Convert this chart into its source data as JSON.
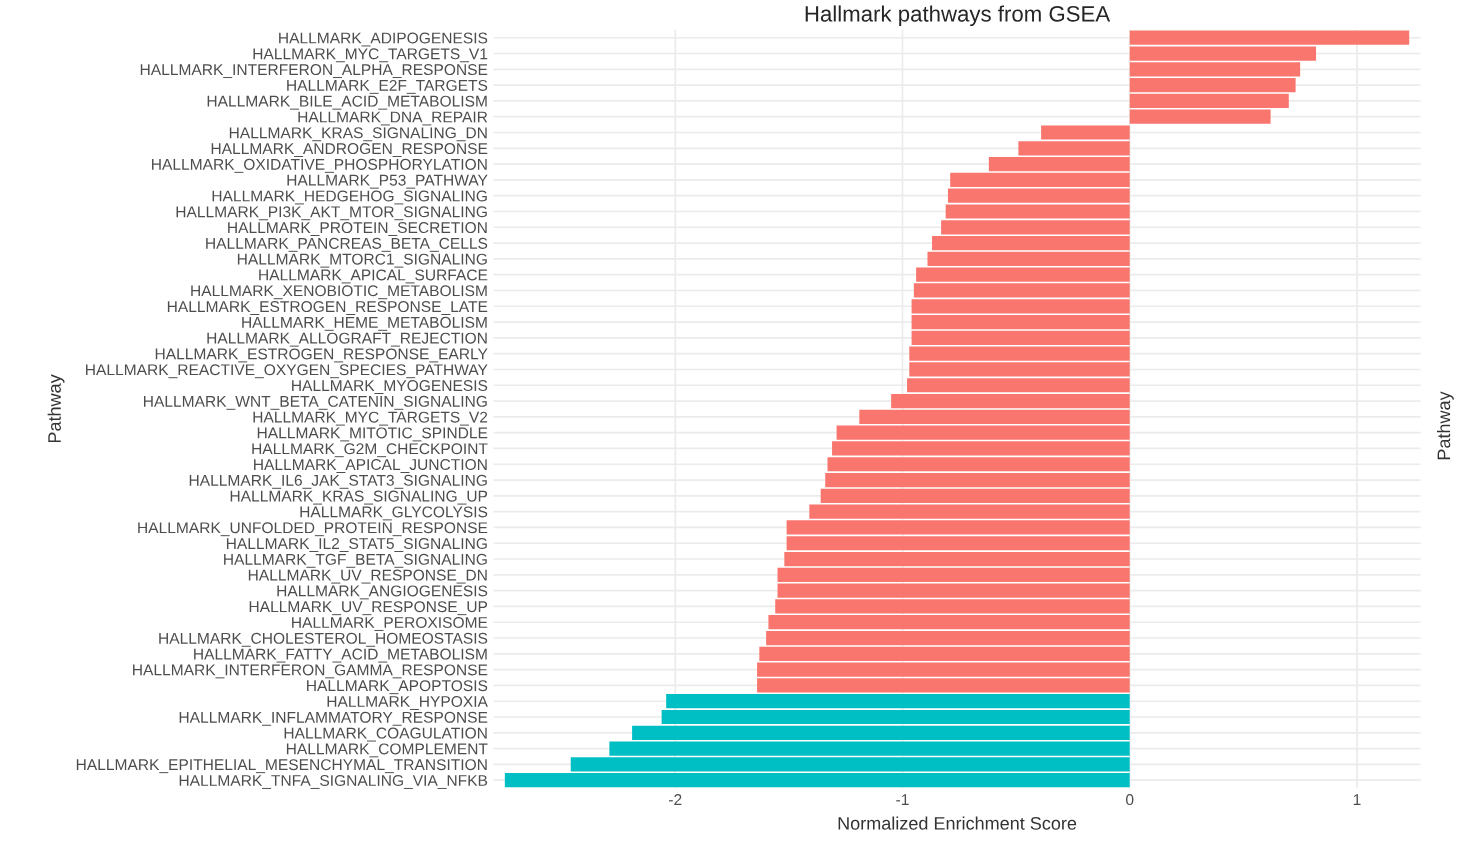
{
  "chart_data": {
    "type": "bar",
    "orientation": "horizontal",
    "title": "Hallmark pathways from GSEA",
    "xlabel": "Normalized Enrichment Score",
    "ylabel": "Pathway",
    "y2label": "Pathway",
    "categories": [
      "HALLMARK_ADIPOGENESIS",
      "HALLMARK_MYC_TARGETS_V1",
      "HALLMARK_INTERFERON_ALPHA_RESPONSE",
      "HALLMARK_E2F_TARGETS",
      "HALLMARK_BILE_ACID_METABOLISM",
      "HALLMARK_DNA_REPAIR",
      "HALLMARK_KRAS_SIGNALING_DN",
      "HALLMARK_ANDROGEN_RESPONSE",
      "HALLMARK_OXIDATIVE_PHOSPHORYLATION",
      "HALLMARK_P53_PATHWAY",
      "HALLMARK_HEDGEHOG_SIGNALING",
      "HALLMARK_PI3K_AKT_MTOR_SIGNALING",
      "HALLMARK_PROTEIN_SECRETION",
      "HALLMARK_PANCREAS_BETA_CELLS",
      "HALLMARK_MTORC1_SIGNALING",
      "HALLMARK_APICAL_SURFACE",
      "HALLMARK_XENOBIOTIC_METABOLISM",
      "HALLMARK_ESTROGEN_RESPONSE_LATE",
      "HALLMARK_HEME_METABOLISM",
      "HALLMARK_ALLOGRAFT_REJECTION",
      "HALLMARK_ESTROGEN_RESPONSE_EARLY",
      "HALLMARK_REACTIVE_OXYGEN_SPECIES_PATHWAY",
      "HALLMARK_MYOGENESIS",
      "HALLMARK_WNT_BETA_CATENIN_SIGNALING",
      "HALLMARK_MYC_TARGETS_V2",
      "HALLMARK_MITOTIC_SPINDLE",
      "HALLMARK_G2M_CHECKPOINT",
      "HALLMARK_APICAL_JUNCTION",
      "HALLMARK_IL6_JAK_STAT3_SIGNALING",
      "HALLMARK_KRAS_SIGNALING_UP",
      "HALLMARK_GLYCOLYSIS",
      "HALLMARK_UNFOLDED_PROTEIN_RESPONSE",
      "HALLMARK_IL2_STAT5_SIGNALING",
      "HALLMARK_TGF_BETA_SIGNALING",
      "HALLMARK_UV_RESPONSE_DN",
      "HALLMARK_ANGIOGENESIS",
      "HALLMARK_UV_RESPONSE_UP",
      "HALLMARK_PEROXISOME",
      "HALLMARK_CHOLESTEROL_HOMEOSTASIS",
      "HALLMARK_FATTY_ACID_METABOLISM",
      "HALLMARK_INTERFERON_GAMMA_RESPONSE",
      "HALLMARK_APOPTOSIS",
      "HALLMARK_HYPOXIA",
      "HALLMARK_INFLAMMATORY_RESPONSE",
      "HALLMARK_COAGULATION",
      "HALLMARK_COMPLEMENT",
      "HALLMARK_EPITHELIAL_MESENCHYMAL_TRANSITION",
      "HALLMARK_TNFA_SIGNALING_VIA_NFKB"
    ],
    "values": [
      1.23,
      0.82,
      0.75,
      0.73,
      0.7,
      0.62,
      -0.39,
      -0.49,
      -0.62,
      -0.79,
      -0.8,
      -0.81,
      -0.83,
      -0.87,
      -0.89,
      -0.94,
      -0.95,
      -0.96,
      -0.96,
      -0.96,
      -0.97,
      -0.97,
      -0.98,
      -1.05,
      -1.19,
      -1.29,
      -1.31,
      -1.33,
      -1.34,
      -1.36,
      -1.41,
      -1.51,
      -1.51,
      -1.52,
      -1.55,
      -1.55,
      -1.56,
      -1.59,
      -1.6,
      -1.63,
      -1.64,
      -1.64,
      -2.04,
      -2.06,
      -2.19,
      -2.29,
      -2.46,
      -2.75
    ],
    "colors": [
      "#f8766d",
      "#f8766d",
      "#f8766d",
      "#f8766d",
      "#f8766d",
      "#f8766d",
      "#f8766d",
      "#f8766d",
      "#f8766d",
      "#f8766d",
      "#f8766d",
      "#f8766d",
      "#f8766d",
      "#f8766d",
      "#f8766d",
      "#f8766d",
      "#f8766d",
      "#f8766d",
      "#f8766d",
      "#f8766d",
      "#f8766d",
      "#f8766d",
      "#f8766d",
      "#f8766d",
      "#f8766d",
      "#f8766d",
      "#f8766d",
      "#f8766d",
      "#f8766d",
      "#f8766d",
      "#f8766d",
      "#f8766d",
      "#f8766d",
      "#f8766d",
      "#f8766d",
      "#f8766d",
      "#f8766d",
      "#f8766d",
      "#f8766d",
      "#f8766d",
      "#f8766d",
      "#f8766d",
      "#00bfc4",
      "#00bfc4",
      "#00bfc4",
      "#00bfc4",
      "#00bfc4",
      "#00bfc4"
    ],
    "xlim": [
      -2.8,
      1.28
    ],
    "xticks": [
      -2,
      -1,
      0,
      1
    ],
    "grid": true,
    "legend": false
  }
}
